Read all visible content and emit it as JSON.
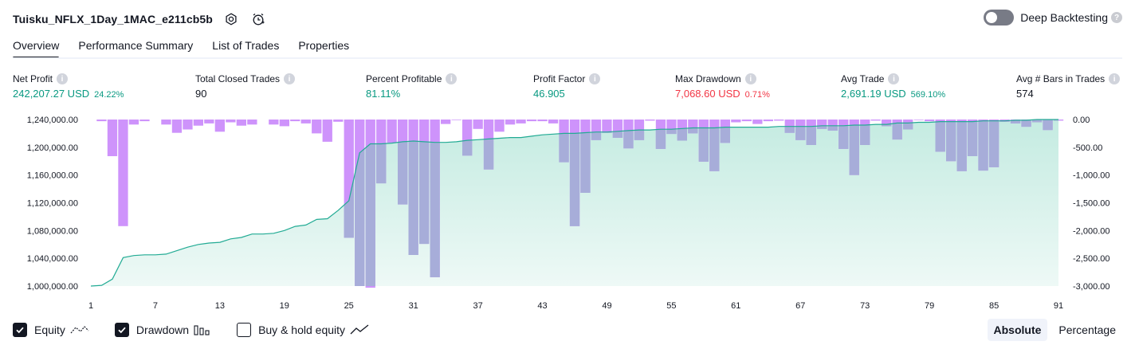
{
  "header": {
    "strategy_name": "Tuisku_NFLX_1Day_1MAC_e211cb5b",
    "deep_backtesting_label": "Deep Backtesting"
  },
  "tabs": [
    {
      "label": "Overview",
      "active": true
    },
    {
      "label": "Performance Summary",
      "active": false
    },
    {
      "label": "List of Trades",
      "active": false
    },
    {
      "label": "Properties",
      "active": false
    }
  ],
  "metrics": {
    "net_profit": {
      "label": "Net Profit",
      "value": "242,207.27 USD",
      "pct": "24.22%"
    },
    "total_closed_trades": {
      "label": "Total Closed Trades",
      "value": "90"
    },
    "percent_profitable": {
      "label": "Percent Profitable",
      "value": "81.11%"
    },
    "profit_factor": {
      "label": "Profit Factor",
      "value": "46.905"
    },
    "max_drawdown": {
      "label": "Max Drawdown",
      "value": "7,068.60 USD",
      "pct": "0.71%"
    },
    "avg_trade": {
      "label": "Avg Trade",
      "value": "2,691.19 USD",
      "pct": "569.10%"
    },
    "avg_bars": {
      "label": "Avg # Bars in Trades",
      "value": "574"
    }
  },
  "legend": {
    "equity": {
      "label": "Equity",
      "checked": true
    },
    "drawdown": {
      "label": "Drawdown",
      "checked": true
    },
    "buy_hold": {
      "label": "Buy & hold equity",
      "checked": false
    }
  },
  "modes": {
    "absolute": "Absolute",
    "percentage": "Percentage",
    "active": "absolute"
  },
  "colors": {
    "equity_line": "#22ab94",
    "equity_fill_top": "#c4ebe1",
    "equity_fill_bottom": "#eef9f6",
    "drawdown_bar": "#ce93fb",
    "drawdown_bar_over_fill": "#a7add9",
    "green": "#089981",
    "red": "#f23645"
  },
  "chart_data": {
    "type": "line",
    "x_ticks": [
      "1",
      "7",
      "13",
      "19",
      "25",
      "31",
      "37",
      "43",
      "49",
      "55",
      "61",
      "67",
      "73",
      "79",
      "85",
      "91"
    ],
    "left_axis": {
      "ticks": [
        "1,240,000.00",
        "1,200,000.00",
        "1,160,000.00",
        "1,120,000.00",
        "1,080,000.00",
        "1,040,000.00",
        "1,000,000.00"
      ],
      "range": [
        1000000,
        1240000
      ]
    },
    "right_axis": {
      "ticks": [
        "0.00",
        "-500.00",
        "-1,000.00",
        "-1,500.00",
        "-2,000.00",
        "-2,500.00",
        "-3,000.00"
      ],
      "range": [
        -3000,
        0
      ]
    },
    "series": [
      {
        "name": "Equity",
        "axis": "left",
        "x": [
          1,
          2,
          3,
          4,
          5,
          6,
          7,
          8,
          9,
          10,
          11,
          12,
          13,
          14,
          15,
          16,
          17,
          18,
          19,
          20,
          21,
          22,
          23,
          24,
          25,
          26,
          27,
          28,
          29,
          30,
          31,
          32,
          33,
          34,
          35,
          36,
          37,
          38,
          39,
          40,
          41,
          42,
          43,
          44,
          45,
          46,
          47,
          48,
          49,
          50,
          51,
          52,
          53,
          54,
          55,
          56,
          57,
          58,
          59,
          60,
          61,
          62,
          63,
          64,
          65,
          66,
          67,
          68,
          69,
          70,
          71,
          72,
          73,
          74,
          75,
          76,
          77,
          78,
          79,
          80,
          81,
          82,
          83,
          84,
          85,
          86,
          87,
          88,
          89,
          90,
          91
        ],
        "values": [
          1000000,
          1001000,
          1010000,
          1041000,
          1044000,
          1045000,
          1045000,
          1046000,
          1051000,
          1056000,
          1060000,
          1062000,
          1063000,
          1068000,
          1070000,
          1075000,
          1075000,
          1076000,
          1080000,
          1086000,
          1088000,
          1096000,
          1097000,
          1109000,
          1123000,
          1192000,
          1205000,
          1205000,
          1206000,
          1208000,
          1209000,
          1208000,
          1207000,
          1207000,
          1208000,
          1210000,
          1211000,
          1212000,
          1213000,
          1214000,
          1214000,
          1216000,
          1218000,
          1219000,
          1220000,
          1220000,
          1221000,
          1222000,
          1222000,
          1223000,
          1224000,
          1225000,
          1225000,
          1226000,
          1226000,
          1227000,
          1228000,
          1228000,
          1228000,
          1229000,
          1229000,
          1229000,
          1229000,
          1229000,
          1230000,
          1230000,
          1230000,
          1230000,
          1231000,
          1231000,
          1231000,
          1232000,
          1232000,
          1233000,
          1233000,
          1235000,
          1235000,
          1236000,
          1236000,
          1237000,
          1237000,
          1237000,
          1237000,
          1238000,
          1238000,
          1238000,
          1239000,
          1239000,
          1240000,
          1240000,
          1240000
        ]
      },
      {
        "name": "Drawdown",
        "axis": "right",
        "x": [
          1,
          2,
          3,
          4,
          5,
          6,
          7,
          8,
          9,
          10,
          11,
          12,
          13,
          14,
          15,
          16,
          17,
          18,
          19,
          20,
          21,
          22,
          23,
          24,
          25,
          26,
          27,
          28,
          29,
          30,
          31,
          32,
          33,
          34,
          35,
          36,
          37,
          38,
          39,
          40,
          41,
          42,
          43,
          44,
          45,
          46,
          47,
          48,
          49,
          50,
          51,
          52,
          53,
          54,
          55,
          56,
          57,
          58,
          59,
          60,
          61,
          62,
          63,
          64,
          65,
          66,
          67,
          68,
          69,
          70,
          71,
          72,
          73,
          74,
          75,
          76,
          77,
          78,
          79,
          80,
          81,
          82,
          83,
          84,
          85,
          86,
          87,
          88,
          89,
          90,
          91
        ],
        "values": [
          0,
          -30,
          -660,
          -1920,
          -90,
          -30,
          0,
          -90,
          -240,
          -180,
          -110,
          -70,
          -220,
          -50,
          -110,
          -90,
          0,
          -90,
          -120,
          -30,
          -70,
          -250,
          -400,
          -40,
          -2130,
          -3000,
          -3030,
          -1150,
          -420,
          -1530,
          -2440,
          -2240,
          -2840,
          -80,
          -10,
          -650,
          -170,
          -900,
          -220,
          -90,
          -70,
          -30,
          -30,
          -70,
          -770,
          -1920,
          -1320,
          -370,
          -240,
          -330,
          -520,
          -370,
          -20,
          -530,
          -260,
          -380,
          -250,
          -760,
          -930,
          -420,
          -50,
          -30,
          -80,
          -30,
          -20,
          -240,
          -370,
          -460,
          -170,
          -200,
          -530,
          -1000,
          -460,
          -20,
          -120,
          -360,
          -180,
          -10,
          -30,
          -580,
          -750,
          -930,
          -660,
          -920,
          -860,
          -40,
          -70,
          -130,
          -50,
          -190,
          -20
        ]
      }
    ],
    "grid": false
  }
}
